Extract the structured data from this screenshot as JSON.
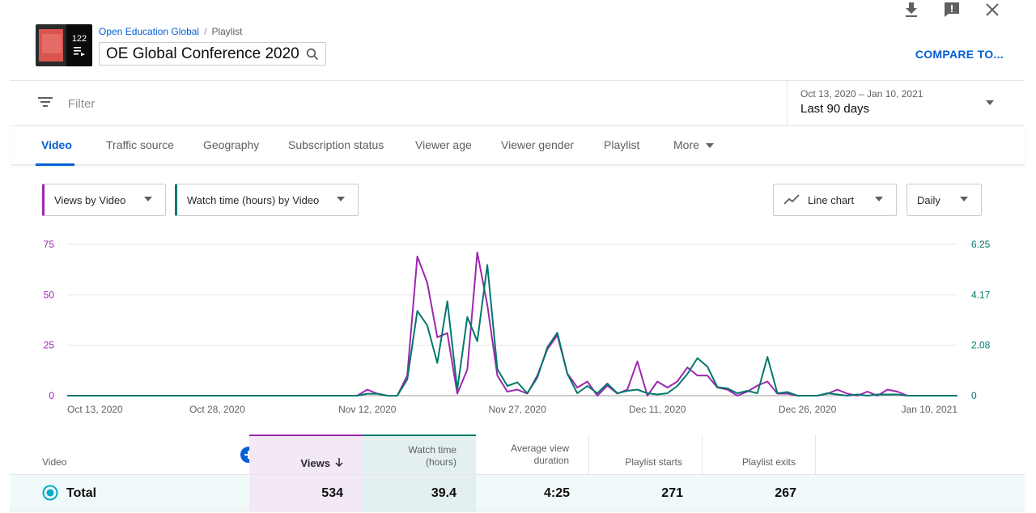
{
  "icons": [
    "download-icon",
    "feedback-icon",
    "close-icon",
    "search-icon",
    "filter-icon",
    "playlist-icon",
    "chevron-down-icon",
    "line-chart-icon",
    "add-icon",
    "radio-selected-icon"
  ],
  "header": {
    "playlist_count": "122",
    "breadcrumb_owner": "Open Education Global",
    "breadcrumb_sep": "/",
    "breadcrumb_type": "Playlist",
    "title": "OE Global Conference 2020",
    "compare_label": "COMPARE TO..."
  },
  "filter": {
    "placeholder": "Filter"
  },
  "date_range": {
    "range": "Oct 13, 2020 – Jan 10, 2021",
    "label": "Last 90 days"
  },
  "tabs": [
    "Video",
    "Traffic source",
    "Geography",
    "Subscription status",
    "Viewer age",
    "Viewer gender",
    "Playlist",
    "More"
  ],
  "controls": {
    "metric1": "Views by Video",
    "metric2": "Watch time (hours) by Video",
    "chart_type": "Line chart",
    "interval": "Daily"
  },
  "colors": {
    "accent": "#065fd4",
    "views": "#9c27b0",
    "watch_time": "#00796b"
  },
  "chart_data": {
    "type": "line",
    "x_labels": [
      "Oct 13, 2020",
      "Oct 28, 2020",
      "Nov 12, 2020",
      "Nov 27, 2020",
      "Dec 11, 2020",
      "Dec 26, 2020",
      "Jan 10, 2021"
    ],
    "x_label_days": [
      0,
      15,
      30,
      45,
      59,
      74,
      89
    ],
    "ylim_left": [
      0,
      75
    ],
    "yticks_left": [
      "0",
      "25",
      "50",
      "75"
    ],
    "ylim_right": [
      0,
      6.25
    ],
    "yticks_right": [
      "0",
      "2.08",
      "4.17",
      "6.25"
    ],
    "grid": true,
    "series": [
      {
        "axis": "left",
        "color": "#9c27b0",
        "values": [
          0,
          0,
          0,
          0,
          0,
          0,
          0,
          0,
          0,
          0,
          0,
          0,
          0,
          0,
          0,
          0,
          0,
          0,
          0,
          0,
          0,
          0,
          0,
          0,
          0,
          0,
          0,
          0,
          0,
          0,
          3,
          1,
          0,
          0,
          10,
          69,
          56,
          29,
          31,
          1,
          13,
          71,
          45,
          10,
          2,
          3,
          1,
          10,
          23,
          30,
          11,
          4,
          7,
          0,
          5,
          1,
          3,
          17,
          0,
          7,
          4,
          7,
          14,
          10,
          10,
          4,
          3,
          0,
          2,
          5,
          7,
          1,
          1,
          0,
          0,
          0,
          1,
          3,
          1,
          0,
          2,
          0,
          3,
          2,
          0,
          0,
          0,
          0,
          0,
          0
        ]
      },
      {
        "axis": "right",
        "color": "#00796b",
        "values": [
          0,
          0,
          0,
          0,
          0,
          0,
          0,
          0,
          0,
          0,
          0,
          0,
          0,
          0,
          0,
          0,
          0,
          0,
          0,
          0,
          0,
          0,
          0,
          0,
          0,
          0,
          0,
          0,
          0,
          0,
          0.08,
          0.08,
          0,
          0,
          0.67,
          3.5,
          2.9,
          1.35,
          3.9,
          0.25,
          3.25,
          2.25,
          5.4,
          1.1,
          0.4,
          0.55,
          0.1,
          0.75,
          2.0,
          2.6,
          0.9,
          0.1,
          0.4,
          0.1,
          0.5,
          0.1,
          0.2,
          0.25,
          0.1,
          0.05,
          0.1,
          0.4,
          0.9,
          1.55,
          1.2,
          0.35,
          0.3,
          0.1,
          0.2,
          0.1,
          1.6,
          0.1,
          0.15,
          0,
          0,
          0,
          0.1,
          0.05,
          0,
          0.05,
          0,
          0.05,
          0.05,
          0.05,
          0,
          0,
          0,
          0,
          0,
          0
        ]
      }
    ]
  },
  "table": {
    "headers": {
      "video": "Video",
      "views": "Views",
      "watch_time": "Watch time\n(hours)",
      "avg_duration": "Average view\nduration",
      "starts": "Playlist starts",
      "exits": "Playlist exits"
    },
    "total": {
      "label": "Total",
      "views": "534",
      "watch_time": "39.4",
      "avg_duration": "4:25",
      "starts": "271",
      "exits": "267"
    }
  }
}
